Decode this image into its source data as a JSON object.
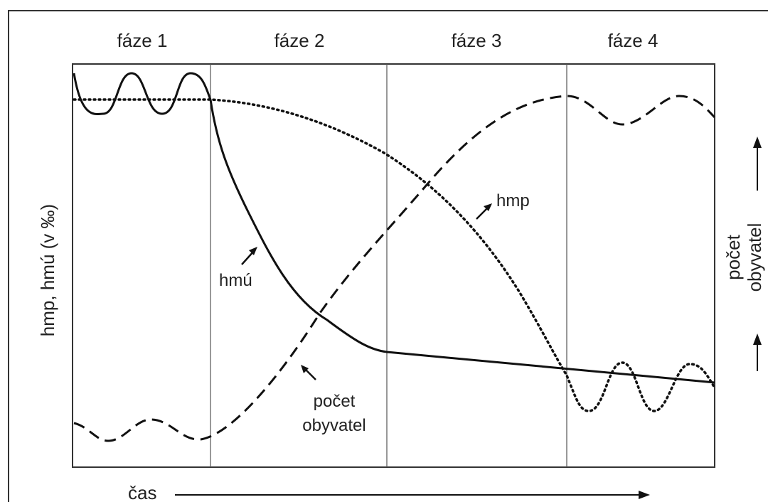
{
  "phases": [
    "fáze 1",
    "fáze 2",
    "fáze 3",
    "fáze 4"
  ],
  "y_axis_label": "hmp, hmú (v ‰)",
  "right_axis_label": [
    "počet",
    "obyvatel"
  ],
  "x_axis_label": "čas",
  "curve_labels": {
    "hmp": "hmp",
    "hmu": "hmú",
    "population": [
      "počet",
      "obyvatel"
    ]
  }
}
